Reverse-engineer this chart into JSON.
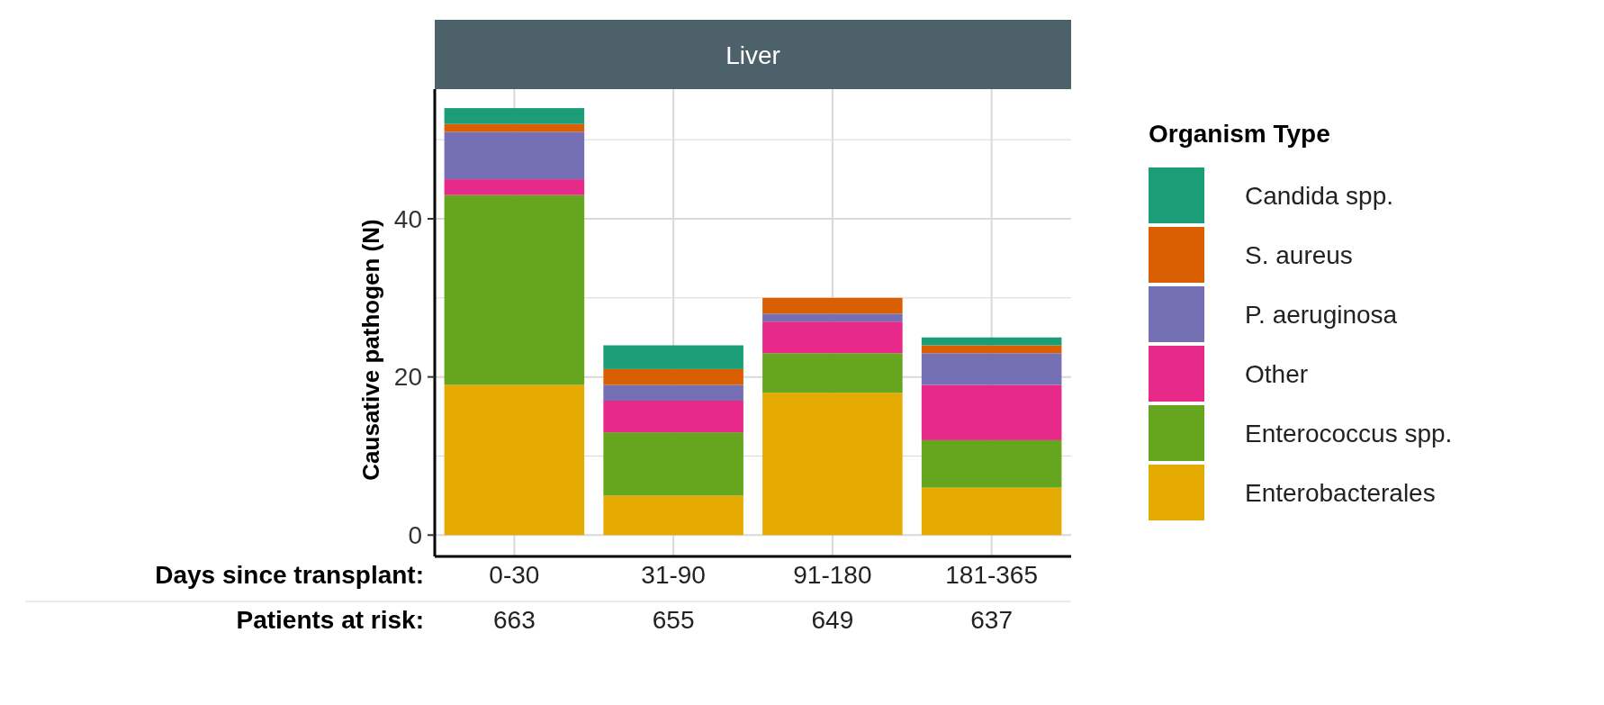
{
  "chart_data": {
    "type": "bar",
    "title": "Liver",
    "xlabel": "Days since transplant:",
    "ylabel": "Causative pathogen (N)",
    "legend_title": "Organism Type",
    "categories": [
      "0-30",
      "31-90",
      "91-180",
      "181-365"
    ],
    "stacked": true,
    "series": [
      {
        "name": "Enterobacterales",
        "color": "#e6ab02",
        "values": [
          19,
          5,
          18,
          6
        ]
      },
      {
        "name": "Enterococcus spp.",
        "color": "#66a61e",
        "values": [
          24,
          8,
          5,
          6
        ]
      },
      {
        "name": "Other",
        "color": "#e7298a",
        "values": [
          2,
          4,
          4,
          7
        ]
      },
      {
        "name": "P. aeruginosa",
        "color": "#7570b3",
        "values": [
          6,
          2,
          1,
          4
        ]
      },
      {
        "name": "S. aureus",
        "color": "#d95f02",
        "values": [
          1,
          2,
          2,
          1
        ]
      },
      {
        "name": "Candida spp.",
        "color": "#1b9e77",
        "values": [
          2,
          3,
          0,
          1
        ]
      }
    ],
    "ylim": [
      -2.7,
      56.4
    ],
    "yticks": [
      0,
      {
        "value": 10,
        "label": null
      },
      20,
      {
        "value": 30,
        "label": null
      },
      40,
      {
        "value": 50,
        "label": null
      }
    ],
    "grid": true,
    "legend": "right",
    "annotations": [
      "Patients at risk:",
      "663",
      "655",
      "649",
      "637"
    ]
  }
}
